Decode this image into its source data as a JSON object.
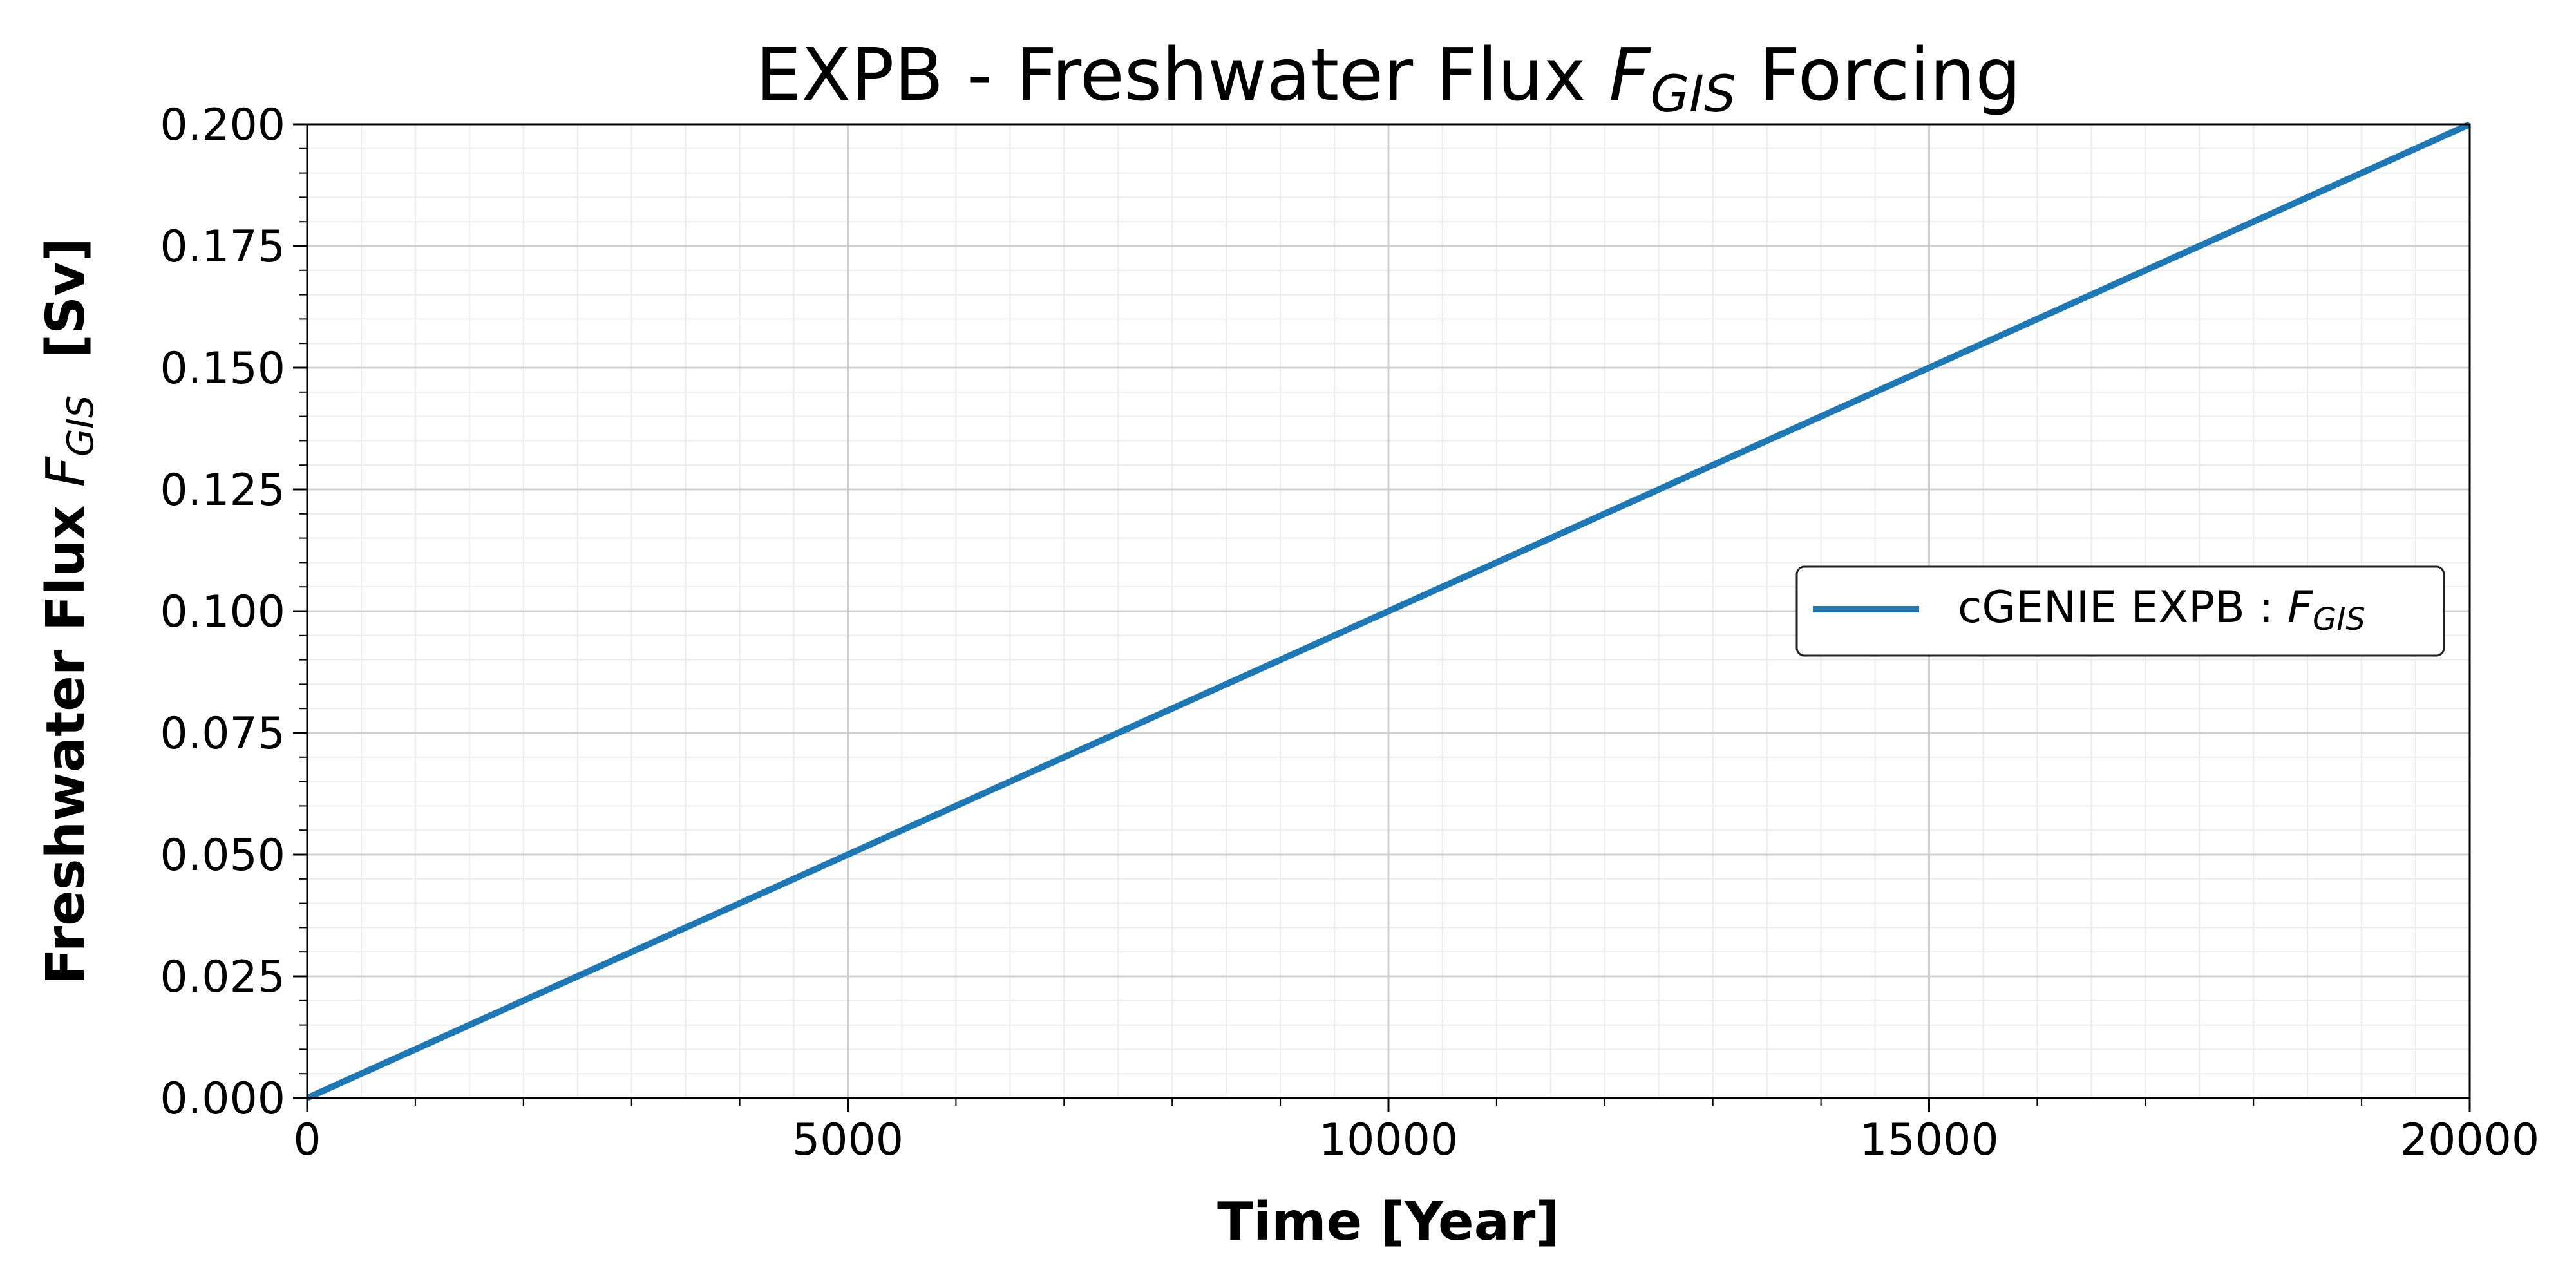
{
  "chart_data": {
    "type": "line",
    "title": {
      "prefix": "EXPB - Freshwater Flux ",
      "symbol": "F",
      "subscript": "GIS",
      "suffix": " Forcing"
    },
    "xlabel": "Time [Year]",
    "ylabel": {
      "prefix": "Freshwater Flux ",
      "symbol": "F",
      "subscript": "GIS",
      "suffix": "  [Sv]"
    },
    "xlim": [
      0,
      20000
    ],
    "ylim": [
      0,
      0.2
    ],
    "xticks": [
      0,
      5000,
      10000,
      15000,
      20000
    ],
    "xtick_labels": [
      "0",
      "5000",
      "10000",
      "15000",
      "20000"
    ],
    "yticks": [
      0,
      0.025,
      0.05,
      0.075,
      0.1,
      0.125,
      0.15,
      0.175,
      0.2
    ],
    "ytick_labels": [
      "0.000",
      "0.025",
      "0.050",
      "0.075",
      "0.100",
      "0.125",
      "0.150",
      "0.175",
      "0.200"
    ],
    "grid": true,
    "minor_grid": true,
    "legend_position": "center-right",
    "series": [
      {
        "name": "cGENIE EXPB : F_GIS",
        "label": {
          "prefix": "cGENIE EXPB : ",
          "symbol": "F",
          "subscript": "GIS"
        },
        "color": "#1f77b4",
        "x": [
          0,
          5000,
          10000,
          15000,
          20000
        ],
        "y": [
          0,
          0.05,
          0.1,
          0.15,
          0.2
        ]
      }
    ]
  }
}
